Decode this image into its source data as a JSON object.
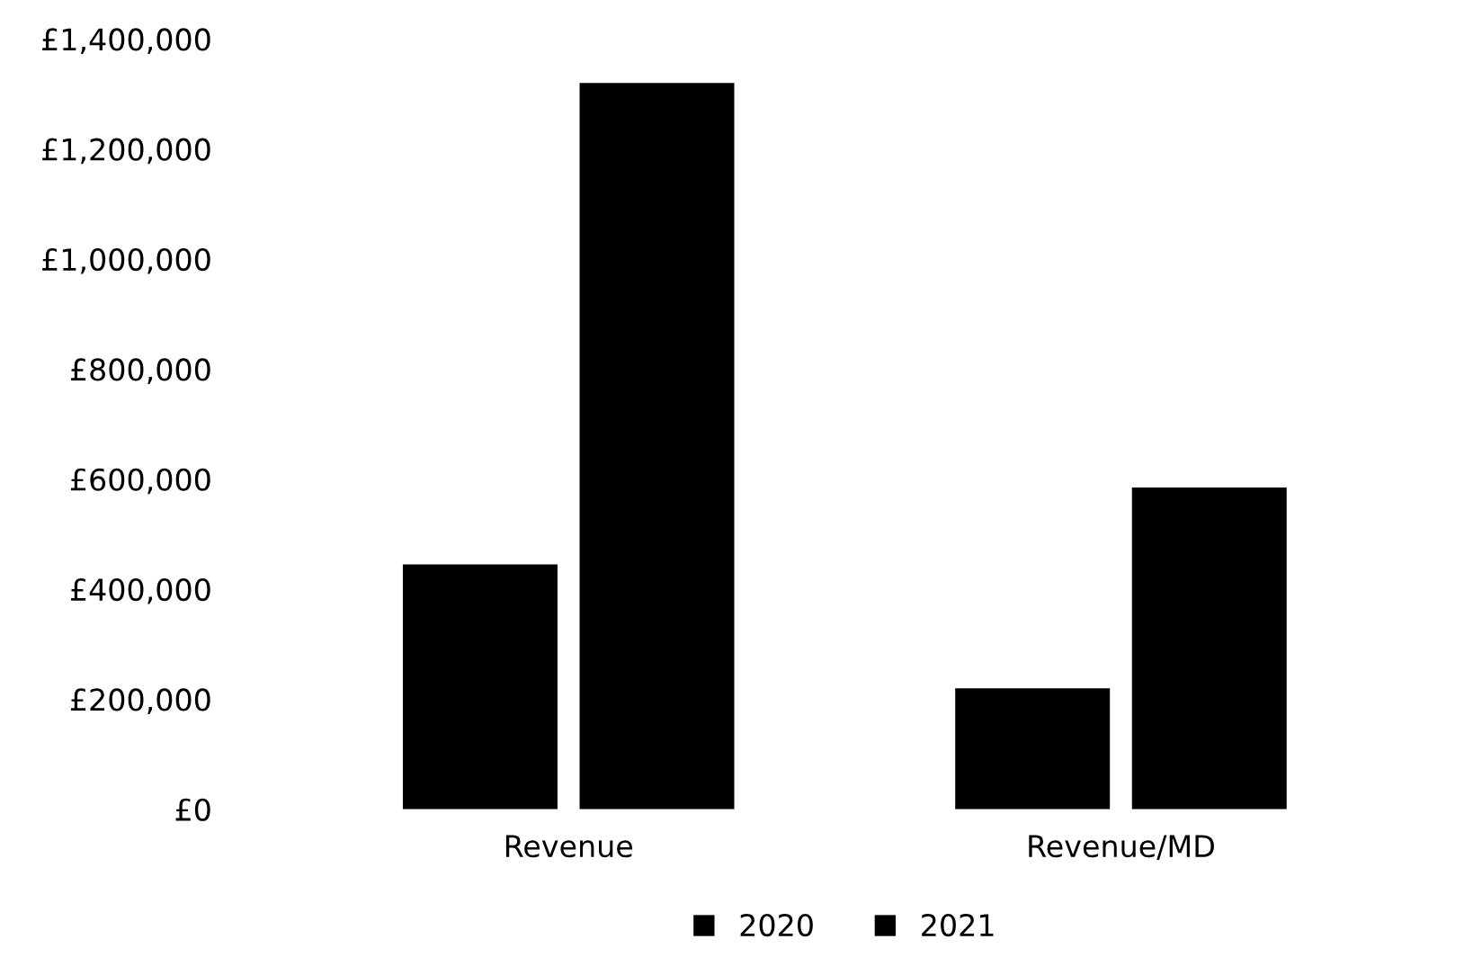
{
  "chart_data": {
    "type": "bar",
    "categories": [
      "Revenue",
      "Revenue/MD"
    ],
    "series": [
      {
        "name": "2020",
        "color": "#000000",
        "values": [
          445000,
          220000
        ]
      },
      {
        "name": "2021",
        "color": "#000000",
        "values": [
          1320000,
          585000
        ]
      }
    ],
    "ylim": [
      0,
      1400000
    ],
    "yticks": [
      {
        "value": 0,
        "label": "£0"
      },
      {
        "value": 200000,
        "label": "£200,000"
      },
      {
        "value": 400000,
        "label": "£400,000"
      },
      {
        "value": 600000,
        "label": "£600,000"
      },
      {
        "value": 800000,
        "label": "£800,000"
      },
      {
        "value": 1000000,
        "label": "£1,000,000"
      },
      {
        "value": 1200000,
        "label": "£1,200,000"
      },
      {
        "value": 1400000,
        "label": "£1,400,000"
      }
    ],
    "grid": false,
    "legend": "bottom"
  }
}
